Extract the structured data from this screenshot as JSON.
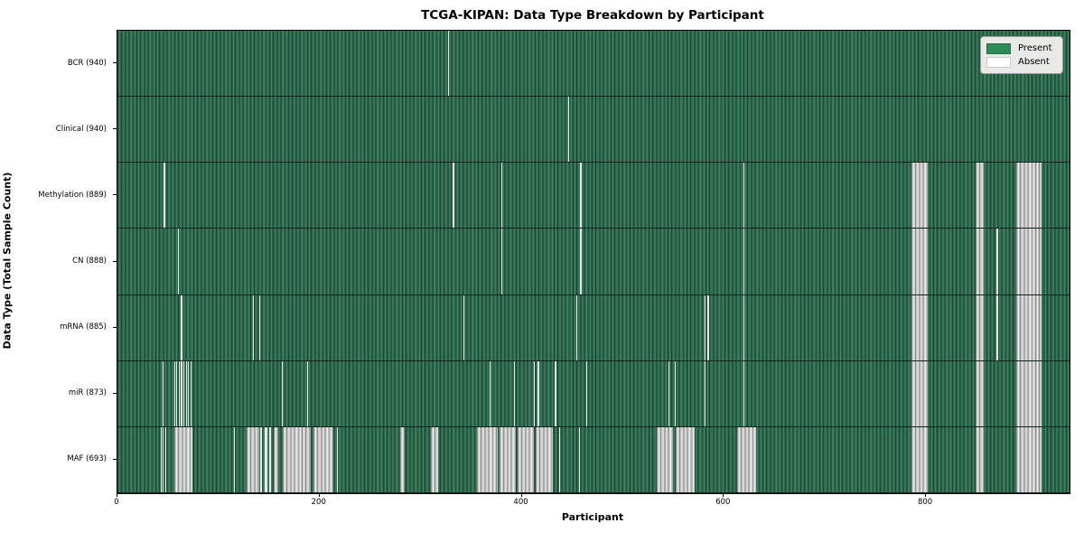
{
  "title": "TCGA-KIPAN: Data Type Breakdown by Participant",
  "chart_data": {
    "type": "heatmap",
    "title": "TCGA-KIPAN: Data Type Breakdown by Participant",
    "xlabel": "Participant",
    "ylabel": "Data Type (Total Sample Count)",
    "x_ticks": [
      0,
      200,
      400,
      600,
      800
    ],
    "x_max": 942,
    "n_participants": 941,
    "grid": false,
    "legend_position": "upper right",
    "legend": {
      "items": [
        {
          "label": "Present",
          "color": "#2e8b57"
        },
        {
          "label": "Absent",
          "color": "#ffffff"
        }
      ]
    },
    "colors": {
      "present": "#2e8b57",
      "absent": "#ffffff"
    },
    "rows": [
      {
        "label": "BCR (940)",
        "data_type": "BCR",
        "total_samples": 940,
        "absent_ranges": [
          [
            327,
            328
          ]
        ]
      },
      {
        "label": "Clinical (940)",
        "data_type": "Clinical",
        "total_samples": 940,
        "absent_ranges": [
          [
            446,
            447
          ]
        ]
      },
      {
        "label": "Methylation (889)",
        "data_type": "Methylation",
        "total_samples": 889,
        "absent_ranges": [
          [
            46,
            47
          ],
          [
            332,
            333
          ],
          [
            380,
            381
          ],
          [
            458,
            459
          ],
          [
            619,
            620
          ],
          [
            786,
            802
          ],
          [
            849,
            857
          ],
          [
            889,
            914
          ]
        ]
      },
      {
        "label": "CN (888)",
        "data_type": "CN",
        "total_samples": 888,
        "absent_ranges": [
          [
            60,
            61
          ],
          [
            380,
            381
          ],
          [
            458,
            459
          ],
          [
            619,
            620
          ],
          [
            786,
            802
          ],
          [
            849,
            857
          ],
          [
            870,
            871
          ],
          [
            889,
            914
          ]
        ]
      },
      {
        "label": "mRNA (885)",
        "data_type": "mRNA",
        "total_samples": 885,
        "absent_ranges": [
          [
            63,
            64
          ],
          [
            134,
            135
          ],
          [
            140,
            141
          ],
          [
            342,
            343
          ],
          [
            454,
            455
          ],
          [
            581,
            582
          ],
          [
            584,
            585
          ],
          [
            619,
            620
          ],
          [
            786,
            802
          ],
          [
            849,
            857
          ],
          [
            870,
            871
          ],
          [
            889,
            914
          ]
        ]
      },
      {
        "label": "miR (873)",
        "data_type": "miR",
        "total_samples": 873,
        "absent_ranges": [
          [
            45,
            46
          ],
          [
            56,
            57
          ],
          [
            58,
            59
          ],
          [
            61,
            62
          ],
          [
            63,
            64
          ],
          [
            65,
            66
          ],
          [
            68,
            69
          ],
          [
            70,
            71
          ],
          [
            72,
            73
          ],
          [
            163,
            164
          ],
          [
            188,
            189
          ],
          [
            368,
            369
          ],
          [
            392,
            393
          ],
          [
            412,
            413
          ],
          [
            416,
            417
          ],
          [
            433,
            434
          ],
          [
            464,
            465
          ],
          [
            545,
            546
          ],
          [
            551,
            552
          ],
          [
            581,
            582
          ],
          [
            619,
            620
          ],
          [
            786,
            802
          ],
          [
            849,
            857
          ],
          [
            889,
            914
          ]
        ]
      },
      {
        "label": "MAF (693)",
        "data_type": "MAF",
        "total_samples": 693,
        "absent_ranges": [
          [
            43,
            44
          ],
          [
            45,
            46
          ],
          [
            47,
            48
          ],
          [
            56,
            74
          ],
          [
            115,
            116
          ],
          [
            128,
            140
          ],
          [
            141,
            143
          ],
          [
            146,
            148
          ],
          [
            150,
            152
          ],
          [
            155,
            159
          ],
          [
            164,
            191
          ],
          [
            194,
            214
          ],
          [
            217,
            218
          ],
          [
            280,
            284
          ],
          [
            310,
            317
          ],
          [
            356,
            376
          ],
          [
            378,
            394
          ],
          [
            396,
            412
          ],
          [
            414,
            431
          ],
          [
            437,
            438
          ],
          [
            457,
            458
          ],
          [
            534,
            550
          ],
          [
            552,
            571
          ],
          [
            613,
            632
          ],
          [
            786,
            802
          ],
          [
            849,
            857
          ],
          [
            889,
            914
          ]
        ]
      }
    ]
  }
}
